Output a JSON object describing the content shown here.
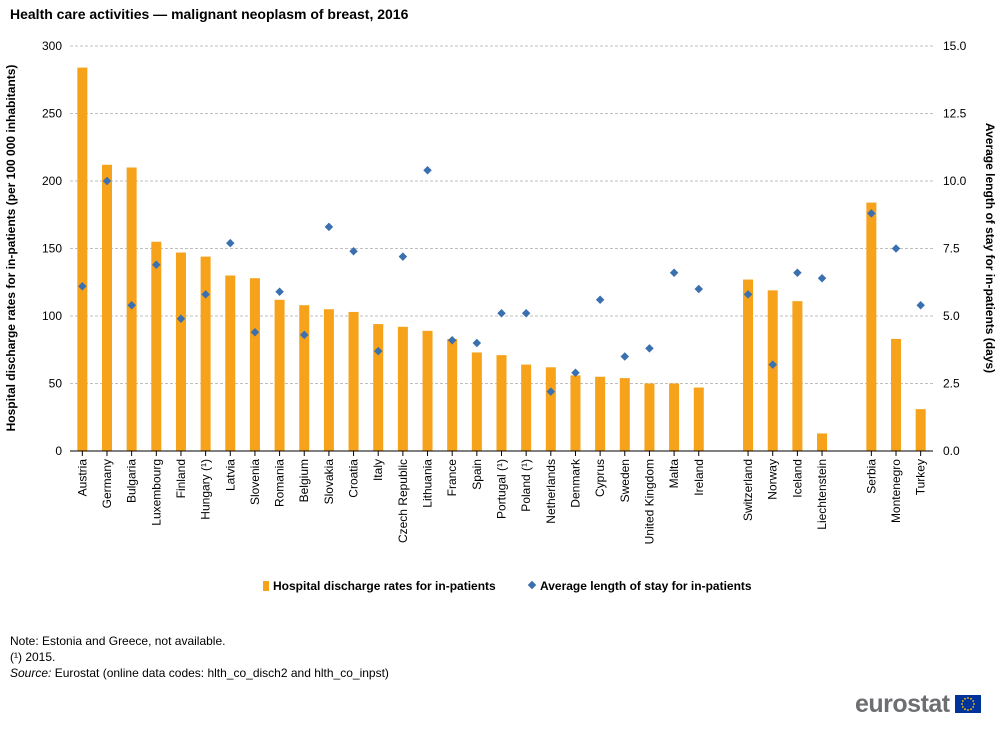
{
  "title": "Health care activities — malignant neoplasm of breast, 2016",
  "colors": {
    "bar": "#F6A21A",
    "diamond": "#3A6FB0",
    "grid": "#bfbfbf",
    "axis": "#000000"
  },
  "chart_data": {
    "type": "bar",
    "title": "Health care activities — malignant neoplasm of breast, 2016",
    "categories": [
      "Austria",
      "Germany",
      "Bulgaria",
      "Luxembourg",
      "Finland",
      "Hungary (¹)",
      "Latvia",
      "Slovenia",
      "Romania",
      "Belgium",
      "Slovakia",
      "Croatia",
      "Italy",
      "Czech Republic",
      "Lithuania",
      "France",
      "Spain",
      "Portugal (¹)",
      "Poland (¹)",
      "Netherlands",
      "Denmark",
      "Cyprus",
      "Sweden",
      "United Kingdom",
      "Malta",
      "Ireland",
      "Switzerland",
      "Norway",
      "Iceland",
      "Liechtenstein",
      "Serbia",
      "Montenegro",
      "Turkey"
    ],
    "category_group_breaks_after": [
      "Ireland",
      "Liechtenstein"
    ],
    "ylabel": "Hospital discharge rates for in-patients (per 100 000 inhabitants)",
    "y2label": "Average length of stay for in-patients (days)",
    "ylim": [
      0,
      300
    ],
    "y2lim": [
      0,
      15
    ],
    "yticks": [
      "0",
      "50",
      "100",
      "150",
      "200",
      "250",
      "300"
    ],
    "y2ticks": [
      "0.0",
      "2.5",
      "5.0",
      "7.5",
      "10.0",
      "12.5",
      "15.0"
    ],
    "grid": true,
    "legend_position": "bottom",
    "series": [
      {
        "name": "Hospital discharge rates for in-patients",
        "type": "bar",
        "axis": "left",
        "values": [
          284,
          212,
          210,
          155,
          147,
          144,
          130,
          128,
          112,
          108,
          105,
          103,
          94,
          92,
          89,
          83,
          73,
          71,
          64,
          62,
          56,
          55,
          54,
          50,
          50,
          47,
          127,
          119,
          111,
          13,
          184,
          83,
          31
        ]
      },
      {
        "name": "Average length of stay for in-patients",
        "type": "scatter",
        "axis": "right",
        "values": [
          6.1,
          10.0,
          5.4,
          6.9,
          4.9,
          5.8,
          7.7,
          4.4,
          5.9,
          4.3,
          8.3,
          7.4,
          3.7,
          7.2,
          10.4,
          4.1,
          4.0,
          5.1,
          5.1,
          2.2,
          2.9,
          5.6,
          3.5,
          3.8,
          6.6,
          6.0,
          5.8,
          3.2,
          6.6,
          6.4,
          8.8,
          7.5,
          5.4
        ]
      }
    ]
  },
  "notes": {
    "note": "Note: Estonia and Greece, not available.",
    "footnote": "(¹) 2015.",
    "source_label": "Source:",
    "source_text": " Eurostat (online data codes: hlth_co_disch2 and hlth_co_inpst)"
  },
  "logo": {
    "text": "eurostat"
  }
}
